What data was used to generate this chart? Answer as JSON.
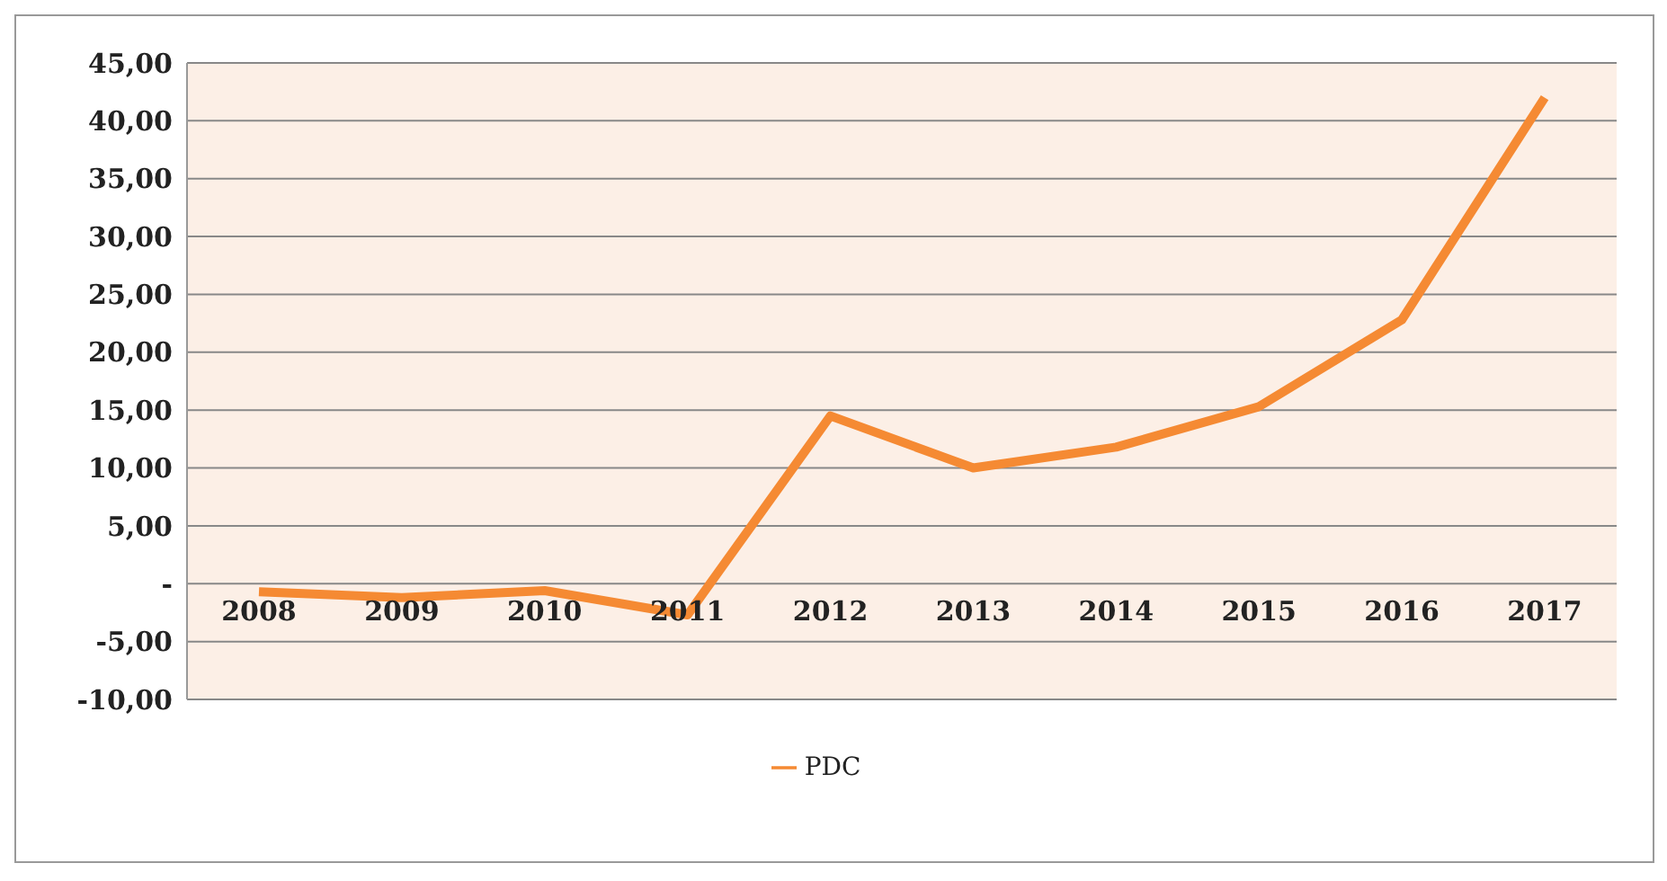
{
  "chart_data": {
    "type": "line",
    "categories": [
      "2008",
      "2009",
      "2010",
      "2011",
      "2012",
      "2013",
      "2014",
      "2015",
      "2016",
      "2017"
    ],
    "series": [
      {
        "name": "PDC",
        "color": "#f58a33",
        "values": [
          -0.7,
          -1.2,
          -0.6,
          -2.7,
          14.5,
          10.0,
          11.8,
          15.3,
          22.8,
          42.0
        ]
      }
    ],
    "ylim": [
      -10,
      45
    ],
    "yticks": [
      {
        "value": -10,
        "label": "-10,00"
      },
      {
        "value": -5,
        "label": "-5,00"
      },
      {
        "value": 0,
        "label": "-"
      },
      {
        "value": 5,
        "label": "5,00"
      },
      {
        "value": 10,
        "label": "10,00"
      },
      {
        "value": 15,
        "label": "15,00"
      },
      {
        "value": 20,
        "label": "20,00"
      },
      {
        "value": 25,
        "label": "25,00"
      },
      {
        "value": 30,
        "label": "30,00"
      },
      {
        "value": 35,
        "label": "35,00"
      },
      {
        "value": 40,
        "label": "40,00"
      },
      {
        "value": 45,
        "label": "45,00"
      }
    ],
    "grid": "y",
    "legend": "bottom",
    "marker": "none",
    "line_style": "solid"
  }
}
